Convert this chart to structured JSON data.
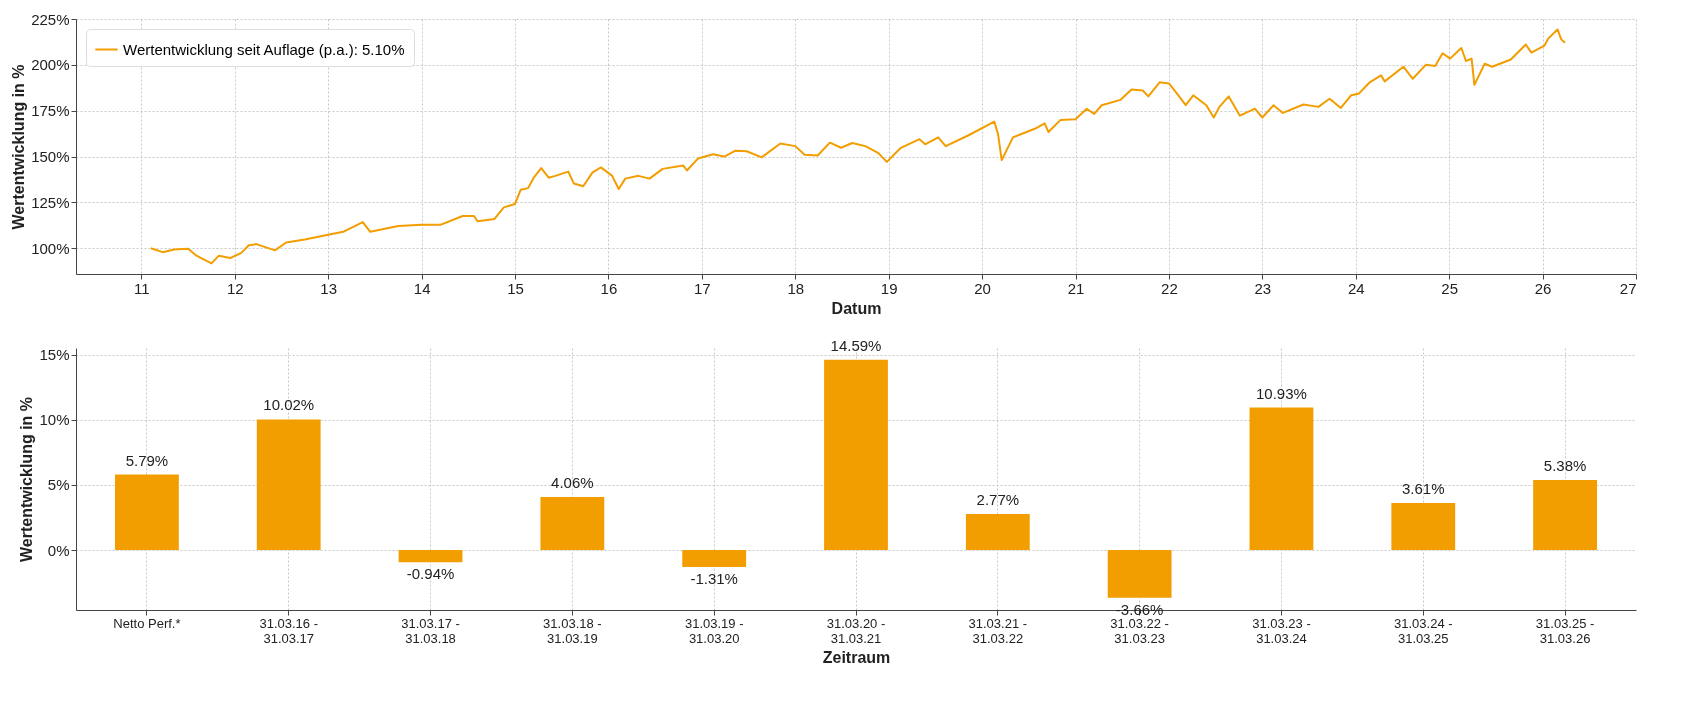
{
  "chart_data": [
    {
      "type": "line",
      "xlabel": "Datum",
      "ylabel": "Wertentwicklung in %",
      "legend": "top left",
      "grid": true,
      "x": [
        11.1,
        11.23,
        11.35,
        11.5,
        11.59,
        11.75,
        11.83,
        11.95,
        12.07,
        12.15,
        12.23,
        12.43,
        12.55,
        12.75,
        12.96,
        13.16,
        13.37,
        13.45,
        13.75,
        14.0,
        14.2,
        14.44,
        14.56,
        14.6,
        14.78,
        14.88,
        15.0,
        15.06,
        15.14,
        15.2,
        15.28,
        15.36,
        15.43,
        15.57,
        15.63,
        15.73,
        15.83,
        15.92,
        16.04,
        16.11,
        16.18,
        16.32,
        16.44,
        16.58,
        16.8,
        16.84,
        16.96,
        17.12,
        17.24,
        17.36,
        17.48,
        17.64,
        17.84,
        18.0,
        18.1,
        18.24,
        18.37,
        18.49,
        18.61,
        18.75,
        18.89,
        18.98,
        19.13,
        19.33,
        19.39,
        19.53,
        19.61,
        19.85,
        20.13,
        20.17,
        20.21,
        20.33,
        20.57,
        20.67,
        20.71,
        20.84,
        21.0,
        21.12,
        21.2,
        21.28,
        21.48,
        21.6,
        21.72,
        21.78,
        21.9,
        22.0,
        22.08,
        22.18,
        22.26,
        22.4,
        22.48,
        22.54,
        22.64,
        22.76,
        22.92,
        23.0,
        23.12,
        23.22,
        23.44,
        23.6,
        23.72,
        23.84,
        23.95,
        24.03,
        24.15,
        24.27,
        24.31,
        24.51,
        24.61,
        24.75,
        24.85,
        24.93,
        25.01,
        25.13,
        25.18,
        25.24,
        25.27,
        25.38,
        25.46,
        25.66,
        25.82,
        25.88,
        26.02,
        26.06,
        26.16,
        26.2,
        26.24
      ],
      "series": [
        {
          "name": "Wertentwicklung seit Auflage (p.a.): 5.10%",
          "color": "#f29d00",
          "values": [
            100,
            97.9,
            99.4,
            99.8,
            96,
            91.8,
            96,
            94.7,
            97.5,
            101.7,
            102.3,
            98.9,
            103.2,
            104.8,
            107,
            109,
            114.3,
            109,
            112.2,
            112.8,
            112.8,
            117.6,
            117.6,
            114.7,
            116,
            122.3,
            124.2,
            131.9,
            132.8,
            138.5,
            143.7,
            138.5,
            139.5,
            141.8,
            135.3,
            133.8,
            141.4,
            144.1,
            139.5,
            132.3,
            138,
            139.5,
            138,
            143.3,
            145.2,
            142.4,
            149,
            151.3,
            150,
            153.2,
            152.9,
            149.6,
            157.1,
            155.7,
            151,
            150.6,
            157.6,
            154.8,
            157.4,
            155.7,
            151.9,
            147.1,
            154.8,
            159.5,
            156.7,
            160.5,
            155.7,
            161.5,
            169.1,
            162.4,
            148.1,
            160.5,
            165.3,
            168.1,
            163.4,
            170,
            170.4,
            176.1,
            173.3,
            178,
            180.9,
            186.6,
            186,
            182.8,
            190.5,
            189.9,
            184.7,
            178,
            183.4,
            178,
            171.3,
            177.1,
            182.8,
            172.3,
            176.1,
            171.3,
            178,
            173.8,
            178.4,
            177.1,
            181.5,
            176.5,
            183.4,
            184.2,
            190.5,
            194.3,
            191,
            199,
            192.4,
            200,
            199.4,
            206.3,
            203.4,
            209.2,
            202.1,
            203.4,
            189.1,
            200.6,
            199,
            202.9,
            211.1,
            206.7,
            210.5,
            214.3,
            219.3,
            213.9,
            212
          ]
        }
      ],
      "xlim": [
        10.3,
        27
      ],
      "xticks": [
        11,
        12,
        13,
        14,
        15,
        16,
        17,
        18,
        19,
        20,
        21,
        22,
        23,
        24,
        25,
        26,
        27
      ],
      "ylim": [
        86,
        225
      ],
      "yticks": [
        {
          "value": 100,
          "label": "100%"
        },
        {
          "value": 125,
          "label": "125%"
        },
        {
          "value": 150,
          "label": "150%"
        },
        {
          "value": 175,
          "label": "175%"
        },
        {
          "value": 200,
          "label": "200%"
        },
        {
          "value": 225,
          "label": "225%"
        }
      ]
    },
    {
      "type": "bar",
      "xlabel": "Zeitraum",
      "ylabel": "Wertentwicklung in %",
      "grid": true,
      "color": "#f29d00",
      "categories": [
        "Netto Perf.*",
        "31.03.16 - 31.03.17",
        "31.03.17 - 31.03.18",
        "31.03.18 - 31.03.19",
        "31.03.19 - 31.03.20",
        "31.03.20 - 31.03.21",
        "31.03.21 - 31.03.22",
        "31.03.22 - 31.03.23",
        "31.03.23 - 31.03.24",
        "31.03.24 - 31.03.25",
        "31.03.25 - 31.03.26"
      ],
      "values": [
        5.79,
        10.02,
        -0.94,
        4.06,
        -1.31,
        14.59,
        2.77,
        -3.66,
        10.93,
        3.61,
        5.38
      ],
      "value_labels": [
        "5.79%",
        "10.02%",
        "-0.94%",
        "4.06%",
        "-1.31%",
        "14.59%",
        "2.77%",
        "-3.66%",
        "10.93%",
        "3.61%",
        "5.38%"
      ],
      "ylim": [
        -4.6,
        15.5
      ],
      "yticks": [
        {
          "value": 0,
          "label": "0%"
        },
        {
          "value": 5,
          "label": "5%"
        },
        {
          "value": 10,
          "label": "10%"
        },
        {
          "value": 15,
          "label": "15%"
        }
      ]
    }
  ]
}
